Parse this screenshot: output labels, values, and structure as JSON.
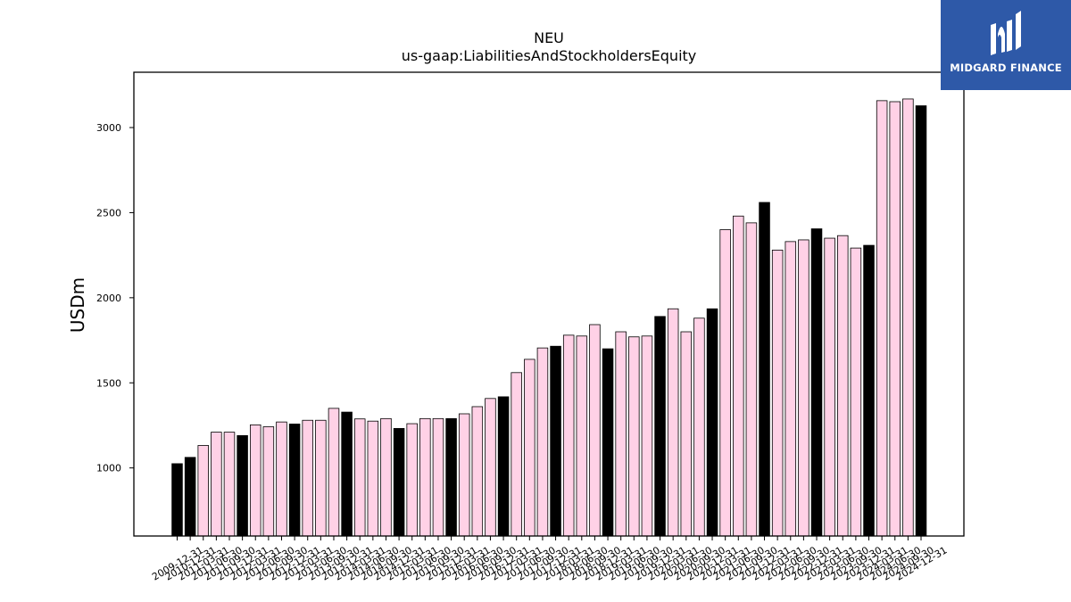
{
  "brand": {
    "name": "MIDGARD FINANCE",
    "bg_color": "#2e59a8",
    "icon": "mf-logo-icon"
  },
  "chart_data": {
    "type": "bar",
    "title": "NEU",
    "subtitle": "us-gaap:LiabilitiesAndStockholdersEquity",
    "ylabel": "USDm",
    "xlabel": "",
    "ylim": [
      600,
      3325
    ],
    "yticks": [
      1000,
      1500,
      2000,
      2500,
      3000
    ],
    "grid": false,
    "colors": {
      "annual": "#000000",
      "quarterly": "#ffd1e6",
      "edge": "#000000"
    },
    "categories": [
      "2009-12-31",
      "2010-12-31",
      "2011-03-31",
      "2011-06-30",
      "2011-09-30",
      "2011-12-31",
      "2012-03-31",
      "2012-06-30",
      "2012-09-30",
      "2012-12-31",
      "2013-03-31",
      "2013-06-30",
      "2013-09-30",
      "2013-12-31",
      "2014-03-31",
      "2014-06-30",
      "2014-09-30",
      "2014-12-31",
      "2015-03-31",
      "2015-06-30",
      "2015-09-30",
      "2015-12-31",
      "2016-03-31",
      "2016-06-30",
      "2016-09-30",
      "2016-12-31",
      "2017-03-31",
      "2017-06-30",
      "2017-09-30",
      "2017-12-31",
      "2018-03-31",
      "2018-06-30",
      "2018-09-30",
      "2018-12-31",
      "2019-03-31",
      "2019-06-30",
      "2019-09-30",
      "2019-12-31",
      "2020-03-31",
      "2020-06-30",
      "2020-09-30",
      "2020-12-31",
      "2021-03-31",
      "2021-06-30",
      "2021-09-30",
      "2021-12-31",
      "2022-03-31",
      "2022-06-30",
      "2022-09-30",
      "2022-12-31",
      "2023-03-31",
      "2023-06-30",
      "2023-09-30",
      "2023-12-31",
      "2024-03-31",
      "2024-06-30",
      "2024-09-30",
      "2024-12-31"
    ],
    "values": [
      1025,
      1062,
      1132,
      1210,
      1210,
      1190,
      1253,
      1242,
      1270,
      1258,
      1280,
      1280,
      1350,
      1328,
      1288,
      1275,
      1290,
      1232,
      1260,
      1290,
      1290,
      1290,
      1318,
      1360,
      1408,
      1418,
      1560,
      1638,
      1705,
      1715,
      1780,
      1775,
      1842,
      1700,
      1800,
      1770,
      1775,
      1890,
      1935,
      1800,
      1880,
      1935,
      2400,
      2480,
      2440,
      2560,
      2280,
      2330,
      2340,
      2405,
      2350,
      2365,
      2292,
      2308,
      3158,
      3152,
      3168,
      3128
    ],
    "annual": [
      true,
      true,
      false,
      false,
      false,
      true,
      false,
      false,
      false,
      true,
      false,
      false,
      false,
      true,
      false,
      false,
      false,
      true,
      false,
      false,
      false,
      true,
      false,
      false,
      false,
      true,
      false,
      false,
      false,
      true,
      false,
      false,
      false,
      true,
      false,
      false,
      false,
      true,
      false,
      false,
      false,
      true,
      false,
      false,
      false,
      true,
      false,
      false,
      false,
      true,
      false,
      false,
      false,
      true,
      false,
      false,
      false,
      true
    ]
  }
}
